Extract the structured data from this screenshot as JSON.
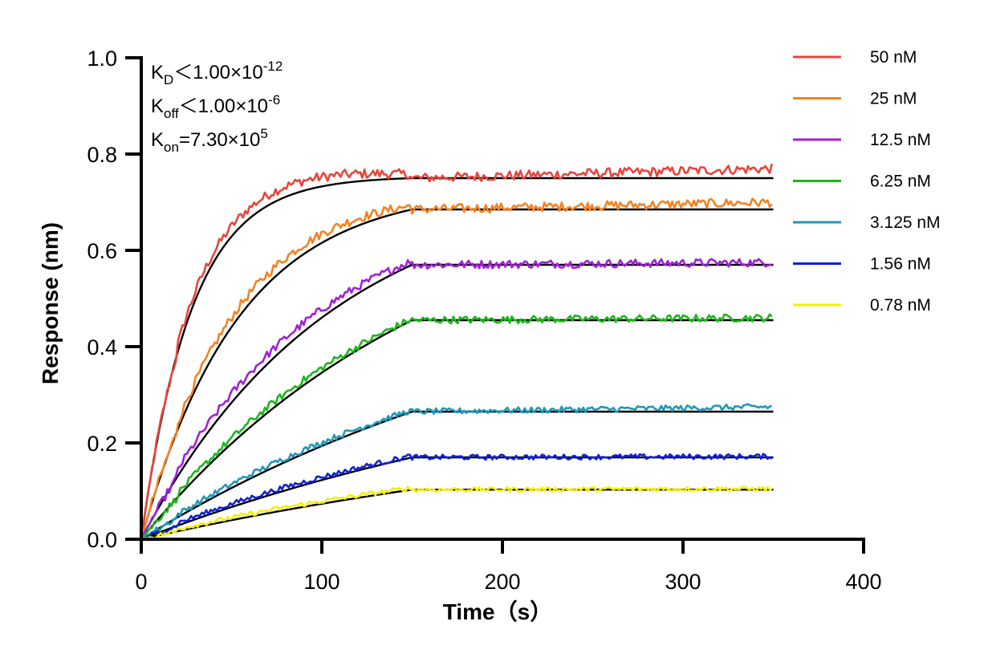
{
  "chart_data": {
    "type": "line",
    "title": "",
    "xlabel": "Time（s）",
    "ylabel": "Response (nm)",
    "xlim": [
      0,
      400
    ],
    "ylim": [
      0,
      1.0
    ],
    "x_ticks": [
      "0",
      "100",
      "200",
      "300",
      "400"
    ],
    "y_ticks": [
      "0.0",
      "0.2",
      "0.4",
      "0.6",
      "0.8",
      "1.0"
    ],
    "grid": false,
    "legend_position": "top-right",
    "association_end_s": 150,
    "dissociation_end_s": 350,
    "annotations": {
      "kd": {
        "k": "K",
        "sub": "D",
        "rel": "＜",
        "mant": "1.00×10",
        "exp": "-12"
      },
      "koff": {
        "k": "K",
        "sub": "off",
        "rel": "＜",
        "mant": "1.00×10",
        "exp": "-6"
      },
      "kon": {
        "k": "K",
        "sub": "on",
        "rel": "=",
        "mant": "7.30×10",
        "exp": "5"
      }
    },
    "series": [
      {
        "name": "50 nM",
        "color": "#e8453c",
        "plateau": 0.75,
        "measured_end": 0.77,
        "k_obs": 0.036
      },
      {
        "name": "25 nM",
        "color": "#f58220",
        "plateau": 0.685,
        "measured_end": 0.7,
        "k_obs": 0.0185
      },
      {
        "name": "12.5 nM",
        "color": "#a020d8",
        "plateau": 0.57,
        "measured_end": 0.575,
        "k_obs": 0.0095
      },
      {
        "name": "6.25 nM",
        "color": "#1ab81a",
        "plateau": 0.455,
        "measured_end": 0.46,
        "k_obs": 0.006
      },
      {
        "name": "3.125 nM",
        "color": "#1f98b8",
        "plateau": 0.265,
        "measured_end": 0.275,
        "k_obs": 0.004
      },
      {
        "name": "1.56 nM",
        "color": "#1022d6",
        "plateau": 0.17,
        "measured_end": 0.172,
        "k_obs": 0.0035
      },
      {
        "name": "0.78 nM",
        "color": "#f5f000",
        "plateau": 0.103,
        "measured_end": 0.105,
        "k_obs": 0.003
      }
    ]
  }
}
